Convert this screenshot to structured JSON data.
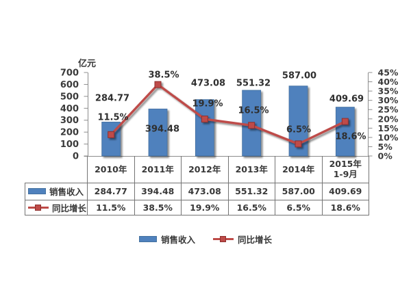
{
  "unit_label": "亿元",
  "chart_data": {
    "type": "combo",
    "categories": [
      "2010年",
      "2011年",
      "2012年",
      "2013年",
      "2014年",
      "2015年1-9月"
    ],
    "series": [
      {
        "name": "销售收入",
        "type": "bar",
        "axis": "left",
        "unit": "亿元",
        "color": "#4f81bd",
        "values": [
          284.77,
          394.48,
          473.08,
          551.32,
          587.0,
          409.69
        ],
        "labels": [
          "284.77",
          "394.48",
          "473.08",
          "551.32",
          "587.00",
          "409.69"
        ]
      },
      {
        "name": "同比增长",
        "type": "line",
        "axis": "right",
        "color": "#be4b48",
        "values": [
          11.5,
          38.5,
          19.9,
          16.5,
          6.5,
          18.6
        ],
        "labels": [
          "11.5%",
          "38.5%",
          "19.9%",
          "16.5%",
          "6.5%",
          "18.6%"
        ]
      }
    ],
    "left_axis": {
      "title": "亿元",
      "min": 0,
      "max": 700,
      "step": 100,
      "tick_labels": [
        "0",
        "100",
        "200",
        "300",
        "400",
        "500",
        "600",
        "700"
      ]
    },
    "right_axis": {
      "min": 0,
      "max": 45,
      "step": 5,
      "tick_labels": [
        "0%",
        "5%",
        "10%",
        "15%",
        "20%",
        "25%",
        "30%",
        "35%",
        "40%",
        "45%"
      ]
    },
    "grid": false,
    "legend_position": "bottom",
    "data_table_shown": true
  },
  "table": {
    "columns": [
      {
        "label": "2010年",
        "sub": ""
      },
      {
        "label": "2011年",
        "sub": ""
      },
      {
        "label": "2012年",
        "sub": ""
      },
      {
        "label": "2013年",
        "sub": ""
      },
      {
        "label": "2014年",
        "sub": ""
      },
      {
        "label": "2015年",
        "sub": "1-9月"
      }
    ],
    "rows": [
      {
        "name": "销售收入",
        "swatch": "bar",
        "cells": [
          "284.77",
          "394.48",
          "473.08",
          "551.32",
          "587.00",
          "409.69"
        ]
      },
      {
        "name": "同比增长",
        "swatch": "line",
        "cells": [
          "11.5%",
          "38.5%",
          "19.9%",
          "16.5%",
          "6.5%",
          "18.6%"
        ]
      }
    ]
  },
  "legend": {
    "items": [
      {
        "label": "销售收入",
        "swatch": "bar",
        "color": "#4f81bd"
      },
      {
        "label": "同比增长",
        "swatch": "line",
        "color": "#be4b48"
      }
    ]
  },
  "colors": {
    "bar": "#4f81bd",
    "bar_border": "#44719f",
    "line": "#be4b48",
    "marker_border": "#8e2f2d",
    "axis": "#8c8c8c",
    "text": "#383838",
    "table_border": "#737373"
  }
}
